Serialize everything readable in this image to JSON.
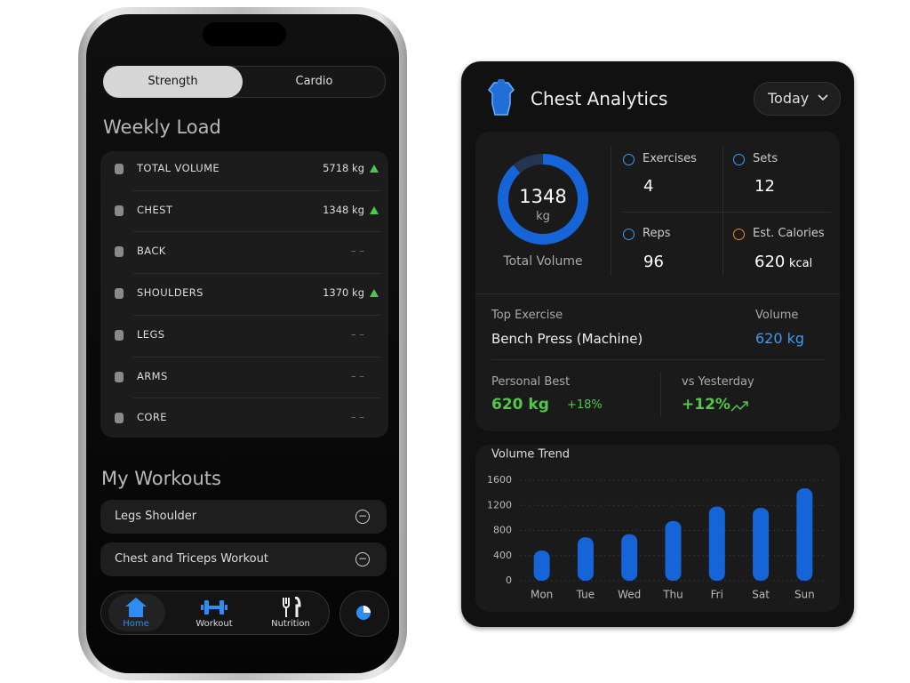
{
  "phone": {
    "tabs": [
      "Strength",
      "Cardio"
    ],
    "weekly_load": {
      "title": "Weekly Load",
      "rows": [
        {
          "label": "TOTAL VOLUME",
          "value": "5718 kg",
          "trend": "up"
        },
        {
          "label": "CHEST",
          "value": "1348 kg",
          "trend": "up"
        },
        {
          "label": "BACK",
          "value": "– –"
        },
        {
          "label": "SHOULDERS",
          "value": "1370 kg",
          "trend": "up"
        },
        {
          "label": "LEGS",
          "value": "– –"
        },
        {
          "label": "ARMS",
          "value": "– –"
        },
        {
          "label": "CORE",
          "value": "– –"
        }
      ]
    },
    "my_workouts": {
      "title": "My Workouts",
      "items": [
        "Legs Shoulder",
        "Chest and Triceps Workout"
      ]
    },
    "nav": [
      "Home",
      "Workout",
      "Nutrition"
    ]
  },
  "analytics": {
    "title": "Chest Analytics",
    "period": "Today",
    "total": {
      "value": "1348",
      "unit": "kg",
      "label": "Total Volume"
    },
    "stats": [
      {
        "label": "Exercises",
        "value": "4"
      },
      {
        "label": "Sets",
        "value": "12"
      },
      {
        "label": "Reps",
        "value": "96"
      },
      {
        "label": "Est. Calories",
        "value": "620",
        "unit": "kcal"
      }
    ],
    "top_exercise": {
      "label": "Top Exercise",
      "name": "Bench Press (Machine)",
      "volume_label": "Volume",
      "volume": "620 kg"
    },
    "personal_best": {
      "label": "Personal Best",
      "value": "620 kg",
      "change": "+18%"
    },
    "vs_yesterday": {
      "label": "vs Yesterday",
      "value": "+12%"
    }
  },
  "chart_data": {
    "type": "bar",
    "title": "Volume Trend",
    "categories": [
      "Mon",
      "Tue",
      "Wed",
      "Thu",
      "Fri",
      "Sat",
      "Sun"
    ],
    "values": [
      480,
      690,
      740,
      950,
      1180,
      1160,
      1470
    ],
    "color": "#1565d8",
    "ylim": [
      0,
      1600
    ],
    "yticks": [
      0,
      400,
      800,
      1200,
      1600
    ],
    "grid": true
  }
}
